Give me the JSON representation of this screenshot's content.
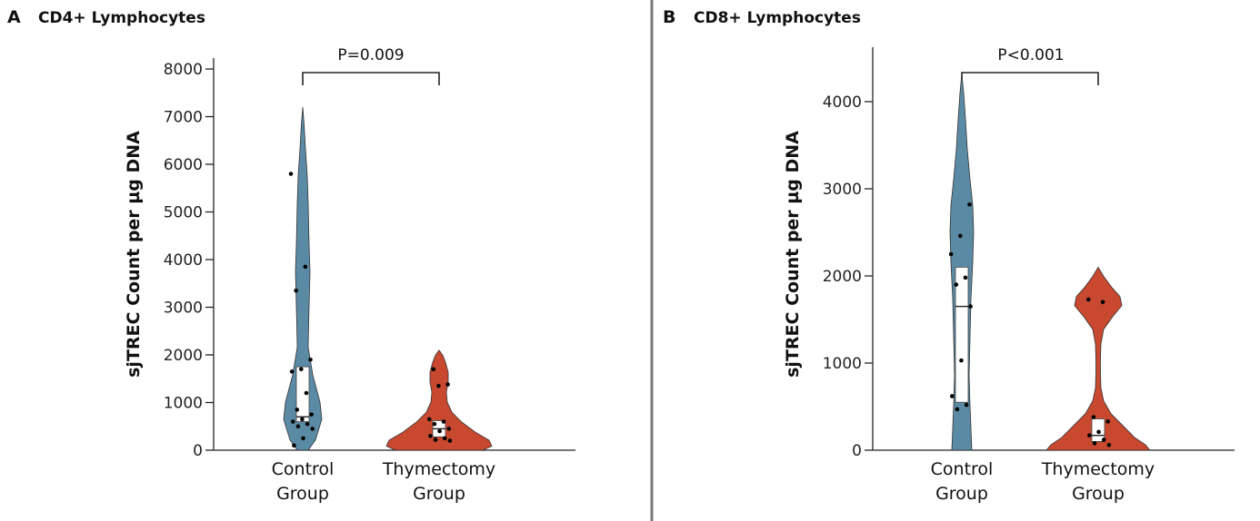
{
  "chart_data": [
    {
      "panel": "A",
      "type": "violin",
      "title": "CD4+ Lymphocytes",
      "ylabel": "sjTREC Count per µg DNA",
      "ylim": [
        0,
        8000
      ],
      "yticks": [
        0,
        1000,
        2000,
        3000,
        4000,
        5000,
        6000,
        7000,
        8000
      ],
      "categories": [
        [
          "Control",
          "Group"
        ],
        [
          "Thymectomy",
          "Group"
        ]
      ],
      "pvalue": "P=0.009",
      "series": [
        {
          "name": "Control Group",
          "color": "#5b8aa5",
          "violin_max": 7200,
          "box": {
            "q1": 600,
            "median": 700,
            "q3": 1750
          },
          "points": [
            5800,
            3850,
            3350,
            1900,
            1700,
            1650,
            1200,
            850,
            750,
            650,
            600,
            550,
            500,
            450,
            250,
            100
          ]
        },
        {
          "name": "Thymectomy Group",
          "color": "#c8492f",
          "violin_max": 2100,
          "box": {
            "q1": 280,
            "median": 450,
            "q3": 620
          },
          "points": [
            1700,
            1380,
            1350,
            650,
            600,
            550,
            450,
            400,
            300,
            250,
            220,
            200
          ]
        }
      ]
    },
    {
      "panel": "B",
      "type": "violin",
      "title": "CD8+ Lymphocytes",
      "ylabel": "sjTREC Count per µg DNA",
      "ylim": [
        0,
        4500
      ],
      "yticks": [
        0,
        1000,
        2000,
        3000,
        4000
      ],
      "categories": [
        [
          "Control",
          "Group"
        ],
        [
          "Thymectomy",
          "Group"
        ]
      ],
      "pvalue": "P<0.001",
      "series": [
        {
          "name": "Control Group",
          "color": "#5b8aa5",
          "violin_max": 4320,
          "box": {
            "q1": 550,
            "median": 1650,
            "q3": 2100
          },
          "points": [
            2820,
            2460,
            2250,
            1980,
            1900,
            1650,
            1030,
            620,
            520,
            470
          ]
        },
        {
          "name": "Thymectomy Group",
          "color": "#c8492f",
          "violin_max": 2100,
          "box": {
            "q1": 100,
            "median": 170,
            "q3": 360
          },
          "points": [
            1730,
            1700,
            380,
            330,
            210,
            170,
            120,
            80,
            60
          ]
        }
      ]
    }
  ]
}
